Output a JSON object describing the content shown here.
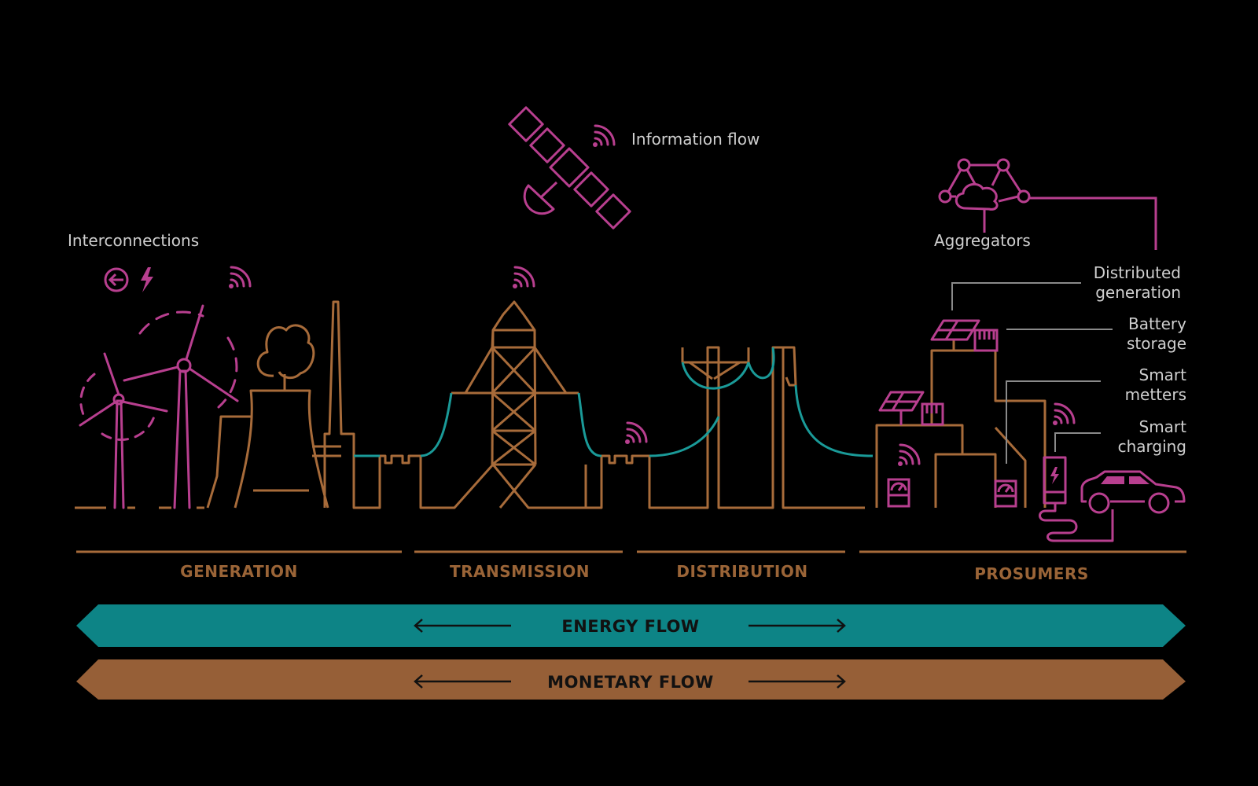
{
  "colors": {
    "background": "#000000",
    "structure": "#a76b3a",
    "information": "#b83f8f",
    "energy_line": "#1a9a98",
    "label": "#cfcfcf",
    "energy_band": "#0d8486",
    "monetary_band": "#965f37"
  },
  "labels": {
    "information_flow": "Information flow",
    "interconnections": "Interconnections",
    "aggregators": "Aggregators",
    "distributed_generation_1": "Distributed",
    "distributed_generation_2": "generation",
    "battery_storage_1": "Battery",
    "battery_storage_2": "storage",
    "smart_meters_1": "Smart",
    "smart_meters_2": "metters",
    "smart_charging_1": "Smart",
    "smart_charging_2": "charging"
  },
  "sections": {
    "generation": "GENERATION",
    "transmission": "TRANSMISSION",
    "distribution": "DISTRIBUTION",
    "prosumers": "PROSUMERS"
  },
  "flows": {
    "energy": "ENERGY FLOW",
    "monetary": "MONETARY FLOW"
  },
  "icons": {
    "satellite": "satellite-icon",
    "wifi": "wifi-signal-icon",
    "interconnection": "arrow-circle-icon",
    "lightning": "lightning-bolt-icon",
    "cloud_network": "cloud-network-icon",
    "solar_panel": "solar-panel-icon",
    "battery": "battery-icon",
    "meter": "smart-meter-icon",
    "charger": "ev-charger-icon",
    "car": "electric-car-icon"
  }
}
